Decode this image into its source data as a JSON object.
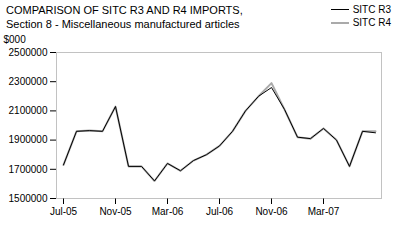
{
  "chart_data": {
    "type": "line",
    "title": "COMPARISON OF SITC R3 AND R4 IMPORTS,",
    "subtitle": "Section 8 - Miscellaneous manufactured articles",
    "ylabel": "$000",
    "categories": [
      "Jul-05",
      null,
      null,
      null,
      "Nov-05",
      null,
      null,
      null,
      "Mar-06",
      null,
      null,
      null,
      "Jul-06",
      null,
      null,
      null,
      "Nov-06",
      null,
      null,
      null,
      "Mar-07",
      null,
      null,
      null,
      null
    ],
    "series": [
      {
        "name": "SITC R3",
        "color": "#000000",
        "values": [
          1730000,
          1960000,
          1965000,
          1960000,
          2130000,
          1720000,
          1720000,
          1620000,
          1740000,
          1690000,
          1760000,
          1800000,
          1860000,
          1960000,
          2100000,
          2200000,
          2260000,
          2110000,
          1920000,
          1910000,
          1980000,
          1900000,
          1720000,
          1960000,
          1950000
        ]
      },
      {
        "name": "SITC R4",
        "color": "#aaaaaa",
        "values": [
          1730000,
          1960000,
          1965000,
          1960000,
          2130000,
          1720000,
          1720000,
          1620000,
          1740000,
          1690000,
          1760000,
          1800000,
          1860000,
          1960000,
          2100000,
          2200000,
          2290000,
          2110000,
          1920000,
          1910000,
          1980000,
          1900000,
          1720000,
          1960000,
          1960000
        ]
      }
    ],
    "ylim": [
      1500000,
      2500000
    ],
    "yticks": [
      1500000,
      1700000,
      1900000,
      2100000,
      2300000,
      2500000
    ],
    "grid": false,
    "legend": "upper right"
  }
}
